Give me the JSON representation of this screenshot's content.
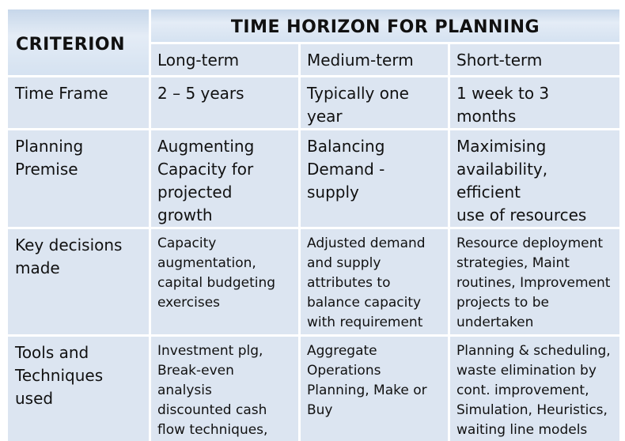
{
  "header": {
    "criterion": "CRITERION",
    "horizon_title": "TIME HORIZON FOR PLANNING",
    "columns": [
      "Long-term",
      "Medium-term",
      "Short-term"
    ]
  },
  "rows": [
    {
      "criterion": "Time Frame",
      "long": "2 – 5 years",
      "medium": "Typically one\nyear",
      "short": "1 week to 3 months"
    },
    {
      "criterion": "Planning Premise",
      "long": "Augmenting\nCapacity for\nprojected growth",
      "medium": "Balancing\nDemand - supply",
      "short": "Maximising\navailability, efficient\nuse of resources"
    },
    {
      "criterion": "Key decisions\nmade",
      "long": "Capacity\naugmentation,\ncapital budgeting\nexercises",
      "medium": "Adjusted demand\nand supply\nattributes to\nbalance capacity\nwith requirement",
      "short": "Resource deployment\nstrategies, Maint\nroutines, Improvement\nprojects to be\nundertaken"
    },
    {
      "criterion": "Tools and\nTechniques used",
      "long": "Investment plg,\nBreak-even analysis\ndiscounted cash\nflow techniques,\nDecision trees",
      "medium": "Aggregate\nOperations\nPlanning, Make or\nBuy",
      "short": "Planning & scheduling,\nwaste elimination by\ncont. improvement,\nSimulation, Heuristics,\nwaiting line models"
    }
  ],
  "colors": {
    "cell_bg": "#dce5f1",
    "header_bg": "#c7d7ea",
    "text": "#111111"
  }
}
